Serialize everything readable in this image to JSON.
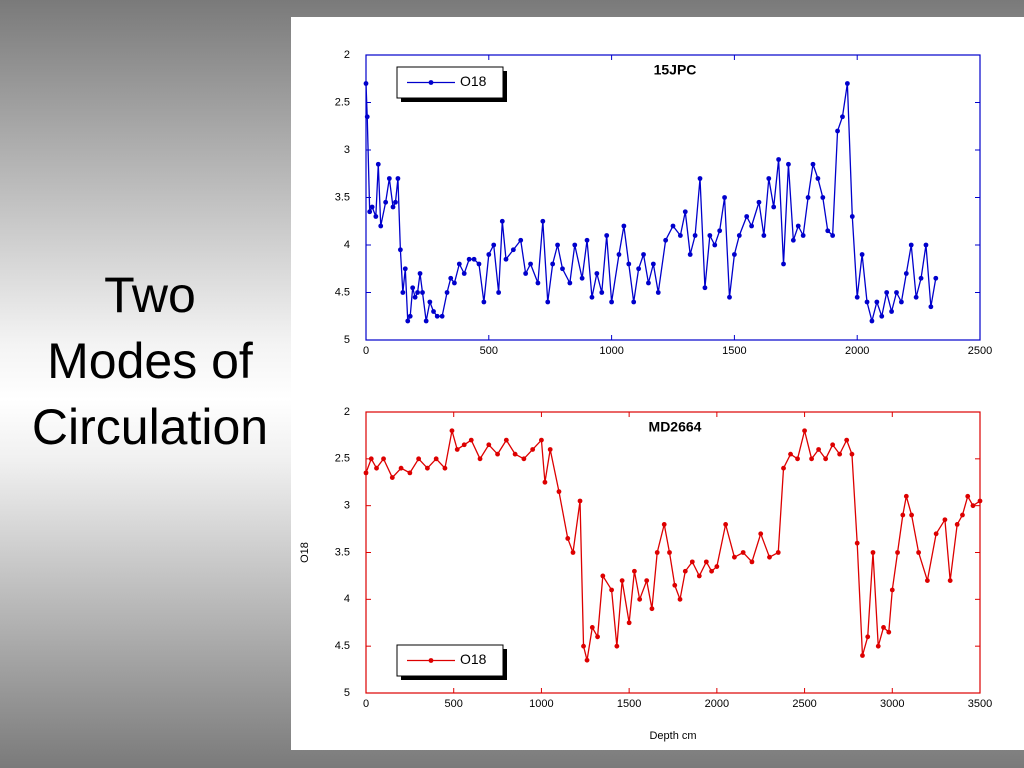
{
  "slide": {
    "title_lines": [
      "Two",
      "Modes of",
      "Circulation"
    ]
  },
  "chart_data": [
    {
      "type": "line",
      "title": "15JPC",
      "legend": "upper left",
      "xlim": [
        0,
        2500
      ],
      "xticks": [
        0,
        500,
        1000,
        1500,
        2000,
        2500
      ],
      "ylim": [
        5,
        2
      ],
      "yticks": [
        2,
        2.5,
        3,
        3.5,
        4,
        4.5,
        5
      ],
      "x": [
        0,
        5,
        15,
        25,
        40,
        50,
        60,
        80,
        95,
        110,
        120,
        130,
        140,
        150,
        160,
        170,
        180,
        190,
        200,
        210,
        220,
        230,
        245,
        260,
        275,
        290,
        310,
        330,
        345,
        360,
        380,
        400,
        420,
        440,
        460,
        480,
        500,
        520,
        540,
        555,
        570,
        600,
        630,
        650,
        670,
        700,
        720,
        740,
        760,
        780,
        800,
        830,
        850,
        880,
        900,
        920,
        940,
        960,
        980,
        1000,
        1030,
        1050,
        1070,
        1090,
        1110,
        1130,
        1150,
        1170,
        1190,
        1220,
        1250,
        1280,
        1300,
        1320,
        1340,
        1360,
        1380,
        1400,
        1420,
        1440,
        1460,
        1480,
        1500,
        1520,
        1550,
        1570,
        1600,
        1620,
        1640,
        1660,
        1680,
        1700,
        1720,
        1740,
        1760,
        1780,
        1800,
        1820,
        1840,
        1860,
        1880,
        1900,
        1920,
        1940,
        1960,
        1980,
        2000,
        2020,
        2040,
        2060,
        2080,
        2100,
        2120,
        2140,
        2160,
        2180,
        2200,
        2220,
        2240,
        2260,
        2280,
        2300,
        2320
      ],
      "series": [
        {
          "name": "O18",
          "color": "#0000cc",
          "values": [
            2.3,
            2.65,
            3.65,
            3.6,
            3.7,
            3.15,
            3.8,
            3.55,
            3.3,
            3.6,
            3.55,
            3.3,
            4.05,
            4.5,
            4.25,
            4.8,
            4.75,
            4.45,
            4.55,
            4.5,
            4.3,
            4.5,
            4.8,
            4.6,
            4.7,
            4.75,
            4.75,
            4.5,
            4.35,
            4.4,
            4.2,
            4.3,
            4.15,
            4.15,
            4.2,
            4.6,
            4.1,
            4.0,
            4.5,
            3.75,
            4.15,
            4.05,
            3.95,
            4.3,
            4.2,
            4.4,
            3.75,
            4.6,
            4.2,
            4.0,
            4.25,
            4.4,
            4.0,
            4.35,
            3.95,
            4.55,
            4.3,
            4.5,
            3.9,
            4.6,
            4.1,
            3.8,
            4.2,
            4.6,
            4.25,
            4.1,
            4.4,
            4.2,
            4.5,
            3.95,
            3.8,
            3.9,
            3.65,
            4.1,
            3.9,
            3.3,
            4.45,
            3.9,
            4.0,
            3.85,
            3.5,
            4.55,
            4.1,
            3.9,
            3.7,
            3.8,
            3.55,
            3.9,
            3.3,
            3.6,
            3.1,
            4.2,
            3.15,
            3.95,
            3.8,
            3.9,
            3.5,
            3.15,
            3.3,
            3.5,
            3.85,
            3.9,
            2.8,
            2.65,
            2.3,
            3.7,
            4.55,
            4.1,
            4.6,
            4.8,
            4.6,
            4.75,
            4.5,
            4.7,
            4.5,
            4.6,
            4.3,
            4.0,
            4.55,
            4.35,
            4.0,
            4.65,
            4.35
          ]
        }
      ]
    },
    {
      "type": "line",
      "title": "MD2664",
      "legend": "lower left",
      "x_label": "Depth cm",
      "y_label": "O18",
      "xlim": [
        0,
        3500
      ],
      "xticks": [
        0,
        500,
        1000,
        1500,
        2000,
        2500,
        3000,
        3500
      ],
      "ylim": [
        5,
        2
      ],
      "yticks": [
        2,
        2.5,
        3,
        3.5,
        4,
        4.5,
        5
      ],
      "x": [
        0,
        30,
        60,
        100,
        150,
        200,
        250,
        300,
        350,
        400,
        450,
        490,
        520,
        560,
        600,
        650,
        700,
        750,
        800,
        850,
        900,
        950,
        1000,
        1020,
        1050,
        1100,
        1150,
        1180,
        1220,
        1240,
        1260,
        1290,
        1320,
        1350,
        1400,
        1430,
        1460,
        1500,
        1530,
        1560,
        1600,
        1630,
        1660,
        1700,
        1730,
        1760,
        1790,
        1820,
        1860,
        1900,
        1940,
        1970,
        2000,
        2050,
        2100,
        2150,
        2200,
        2250,
        2300,
        2350,
        2380,
        2420,
        2460,
        2500,
        2540,
        2580,
        2620,
        2660,
        2700,
        2740,
        2770,
        2800,
        2830,
        2860,
        2890,
        2920,
        2950,
        2980,
        3000,
        3030,
        3060,
        3080,
        3110,
        3150,
        3200,
        3250,
        3300,
        3330,
        3370,
        3400,
        3430,
        3460,
        3500
      ],
      "series": [
        {
          "name": "O18",
          "color": "#dd0000",
          "values": [
            2.65,
            2.5,
            2.6,
            2.5,
            2.7,
            2.6,
            2.65,
            2.5,
            2.6,
            2.5,
            2.6,
            2.2,
            2.4,
            2.35,
            2.3,
            2.5,
            2.35,
            2.45,
            2.3,
            2.45,
            2.5,
            2.4,
            2.3,
            2.75,
            2.4,
            2.85,
            3.35,
            3.5,
            2.95,
            4.5,
            4.65,
            4.3,
            4.4,
            3.75,
            3.9,
            4.5,
            3.8,
            4.25,
            3.7,
            4.0,
            3.8,
            4.1,
            3.5,
            3.2,
            3.5,
            3.85,
            4.0,
            3.7,
            3.6,
            3.75,
            3.6,
            3.7,
            3.65,
            3.2,
            3.55,
            3.5,
            3.6,
            3.3,
            3.55,
            3.5,
            2.6,
            2.45,
            2.5,
            2.2,
            2.5,
            2.4,
            2.5,
            2.35,
            2.45,
            2.3,
            2.45,
            3.4,
            4.6,
            4.4,
            3.5,
            4.5,
            4.3,
            4.35,
            3.9,
            3.5,
            3.1,
            2.9,
            3.1,
            3.5,
            3.8,
            3.3,
            3.15,
            3.8,
            3.2,
            3.1,
            2.9,
            3.0,
            2.95
          ]
        }
      ]
    }
  ]
}
